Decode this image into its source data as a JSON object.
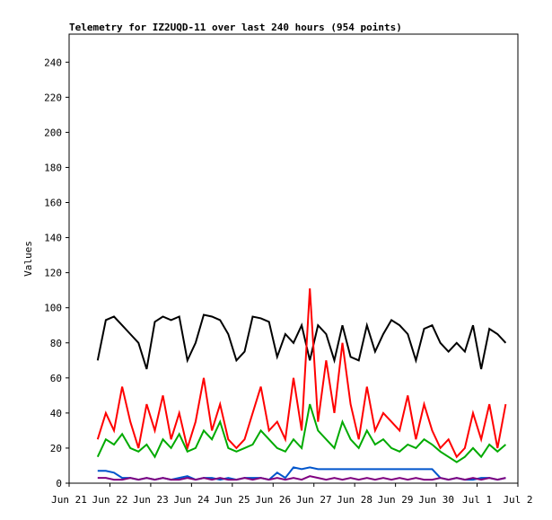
{
  "chart_data": {
    "type": "line",
    "title": "Telemetry for IZ2UQD-11 over last 240 hours (954 points)",
    "y_label": "Values",
    "xlim": [
      0,
      11
    ],
    "xticks": [
      {
        "value": 0,
        "label": "Jun 21"
      },
      {
        "value": 1,
        "label": "Jun 22"
      },
      {
        "value": 2,
        "label": "Jun 23"
      },
      {
        "value": 3,
        "label": "Jun 24"
      },
      {
        "value": 4,
        "label": "Jun 25"
      },
      {
        "value": 5,
        "label": "Jun 26"
      },
      {
        "value": 6,
        "label": "Jun 27"
      },
      {
        "value": 7,
        "label": "Jun 28"
      },
      {
        "value": 8,
        "label": "Jun 29"
      },
      {
        "value": 9,
        "label": "Jun 30"
      },
      {
        "value": 10,
        "label": "Jul 1"
      },
      {
        "value": 11,
        "label": "Jul 2"
      }
    ],
    "ylim": [
      0,
      256
    ],
    "yticks": [
      0,
      20,
      40,
      60,
      80,
      100,
      120,
      140,
      160,
      180,
      200,
      220,
      240
    ],
    "x": [
      0.7,
      0.9,
      1.1,
      1.3,
      1.5,
      1.7,
      1.9,
      2.1,
      2.3,
      2.5,
      2.7,
      2.9,
      3.1,
      3.3,
      3.5,
      3.7,
      3.9,
      4.1,
      4.3,
      4.5,
      4.7,
      4.9,
      5.1,
      5.3,
      5.5,
      5.7,
      5.9,
      6.1,
      6.3,
      6.5,
      6.7,
      6.9,
      7.1,
      7.3,
      7.5,
      7.7,
      7.9,
      8.1,
      8.3,
      8.5,
      8.7,
      8.9,
      9.1,
      9.3,
      9.5,
      9.7,
      9.9,
      10.1,
      10.3,
      10.5,
      10.7
    ],
    "series": [
      {
        "color": "#000000",
        "values": [
          70,
          93,
          95,
          90,
          85,
          80,
          65,
          92,
          95,
          93,
          95,
          70,
          80,
          96,
          95,
          93,
          85,
          70,
          75,
          95,
          94,
          92,
          72,
          85,
          80,
          90,
          70,
          90,
          85,
          70,
          90,
          72,
          70,
          90,
          75,
          85,
          93,
          90,
          85,
          70,
          88,
          90,
          80,
          75,
          80,
          75,
          90,
          65,
          88,
          85,
          80
        ]
      },
      {
        "color": "#ff0000",
        "values": [
          25,
          40,
          30,
          55,
          35,
          20,
          45,
          30,
          50,
          25,
          40,
          20,
          35,
          60,
          30,
          45,
          25,
          20,
          25,
          40,
          55,
          30,
          35,
          25,
          60,
          30,
          111,
          35,
          70,
          40,
          80,
          45,
          25,
          55,
          30,
          40,
          35,
          30,
          50,
          25,
          45,
          30,
          20,
          25,
          15,
          20,
          40,
          25,
          45,
          20,
          45
        ]
      },
      {
        "color": "#00aa00",
        "values": [
          15,
          25,
          22,
          28,
          20,
          18,
          22,
          15,
          25,
          20,
          28,
          18,
          20,
          30,
          25,
          35,
          20,
          18,
          20,
          22,
          30,
          25,
          20,
          18,
          25,
          20,
          45,
          30,
          25,
          20,
          35,
          25,
          20,
          30,
          22,
          25,
          20,
          18,
          22,
          20,
          25,
          22,
          18,
          15,
          12,
          15,
          20,
          15,
          22,
          18,
          22
        ]
      },
      {
        "color": "#0055cc",
        "values": [
          7,
          7,
          6,
          3,
          3,
          2,
          3,
          2,
          3,
          2,
          3,
          4,
          2,
          3,
          3,
          2,
          3,
          2,
          3,
          3,
          3,
          2,
          6,
          3,
          9,
          8,
          9,
          8,
          8,
          8,
          8,
          8,
          8,
          8,
          8,
          8,
          8,
          8,
          8,
          8,
          8,
          8,
          3,
          2,
          3,
          2,
          2,
          3,
          3,
          2,
          3
        ]
      },
      {
        "color": "#800080",
        "values": [
          3,
          3,
          2,
          2,
          3,
          2,
          3,
          2,
          3,
          2,
          2,
          3,
          2,
          3,
          2,
          3,
          2,
          2,
          3,
          2,
          3,
          2,
          3,
          2,
          3,
          2,
          4,
          3,
          2,
          3,
          2,
          3,
          2,
          3,
          2,
          3,
          2,
          3,
          2,
          3,
          2,
          2,
          3,
          2,
          3,
          2,
          3,
          2,
          3,
          2,
          3
        ]
      }
    ]
  }
}
